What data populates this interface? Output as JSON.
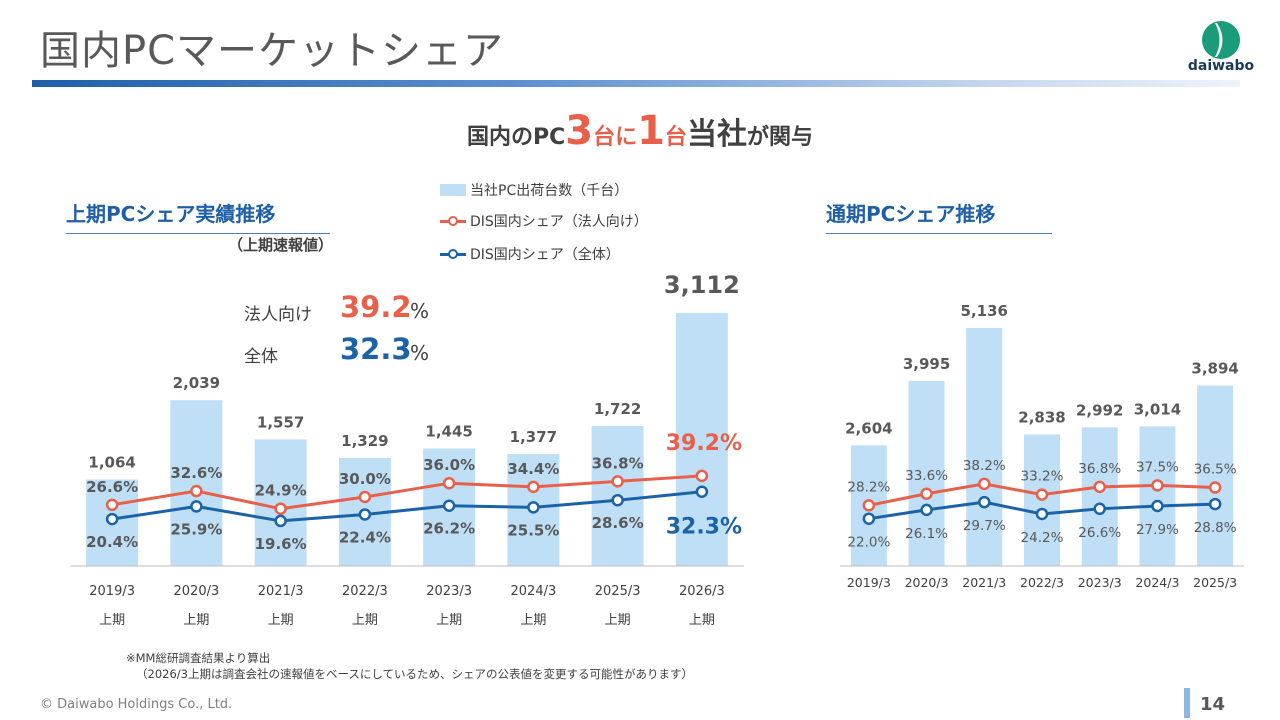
{
  "page": {
    "title": "国内PCマーケットシェア",
    "logo_text": "daiwabo",
    "headline": {
      "a": "国内のPC",
      "b": "3",
      "c": "台に",
      "d": "1",
      "e": "台",
      "f": "当社",
      "g": "が関与"
    },
    "legend": {
      "bars": "当社PC出荷台数（千台）",
      "corporate": "DIS国内シェア（法人向け）",
      "total": "DIS国内シェア（全体）"
    },
    "left_section": {
      "title": "上期PCシェア実績推移",
      "note": "（上期速報値）"
    },
    "right_section": {
      "title": "通期PCシェア推移"
    },
    "kpi": {
      "corporate_label": "法人向け",
      "corporate_value": "39.2",
      "corporate_unit": "%",
      "total_label": "全体",
      "total_value": "32.3",
      "total_unit": "%"
    },
    "footnotes": {
      "line1": "※MM総研調査結果より算出",
      "line2": "（2026/3上期は調査会社の速報値をベースにしているため、シェアの公表値を変更する可能性があります）"
    },
    "copyright": "© Daiwabo Holdings Co., Ltd.",
    "page_number": "14"
  },
  "colors": {
    "bar": "#bfdff7",
    "corporate": "#e8604a",
    "total": "#1b63a8",
    "label": "#595959",
    "axis": "#bfbfbf"
  },
  "chart_data": [
    {
      "type": "bar",
      "name": "half-year",
      "title": "上期PCシェア実績推移",
      "categories": [
        "2019/3",
        "2020/3",
        "2021/3",
        "2022/3",
        "2023/3",
        "2024/3",
        "2025/3",
        "2026/3"
      ],
      "sublabel": "上期",
      "bar_values": [
        1064,
        2039,
        1557,
        1329,
        1445,
        1377,
        1722,
        3112
      ],
      "bar_labels": [
        "1,064",
        "2,039",
        "1,557",
        "1,329",
        "1,445",
        "1,377",
        "1,722",
        "3,112"
      ],
      "series": [
        {
          "name": "DIS国内シェア（法人向け）",
          "values": [
            26.6,
            32.6,
            24.9,
            30.0,
            36.0,
            34.4,
            36.8,
            39.2
          ],
          "labels": [
            "26.6%",
            "32.6%",
            "24.9%",
            "30.0%",
            "36.0%",
            "34.4%",
            "36.8%",
            "39.2%"
          ]
        },
        {
          "name": "DIS国内シェア（全体）",
          "values": [
            20.4,
            25.9,
            19.6,
            22.4,
            26.2,
            25.5,
            28.6,
            32.3
          ],
          "labels": [
            "20.4%",
            "25.9%",
            "19.6%",
            "22.4%",
            "26.2%",
            "25.5%",
            "28.6%",
            "32.3%"
          ]
        }
      ]
    },
    {
      "type": "bar",
      "name": "full-year",
      "title": "通期PCシェア推移",
      "categories": [
        "2019/3",
        "2020/3",
        "2021/3",
        "2022/3",
        "2023/3",
        "2024/3",
        "2025/3"
      ],
      "bar_values": [
        2604,
        3995,
        5136,
        2838,
        2992,
        3014,
        3894
      ],
      "bar_labels": [
        "2,604",
        "3,995",
        "5,136",
        "2,838",
        "2,992",
        "3,014",
        "3,894"
      ],
      "series": [
        {
          "name": "DIS国内シェア（法人向け）",
          "values": [
            28.2,
            33.6,
            38.2,
            33.2,
            36.8,
            37.5,
            36.5
          ],
          "labels": [
            "28.2%",
            "33.6%",
            "38.2%",
            "33.2%",
            "36.8%",
            "37.5%",
            "36.5%"
          ]
        },
        {
          "name": "DIS国内シェア（全体）",
          "values": [
            22.0,
            26.1,
            29.7,
            24.2,
            26.6,
            27.9,
            28.8
          ],
          "labels": [
            "22.0%",
            "26.1%",
            "29.7%",
            "24.2%",
            "26.6%",
            "27.9%",
            "28.8%"
          ]
        }
      ]
    }
  ]
}
